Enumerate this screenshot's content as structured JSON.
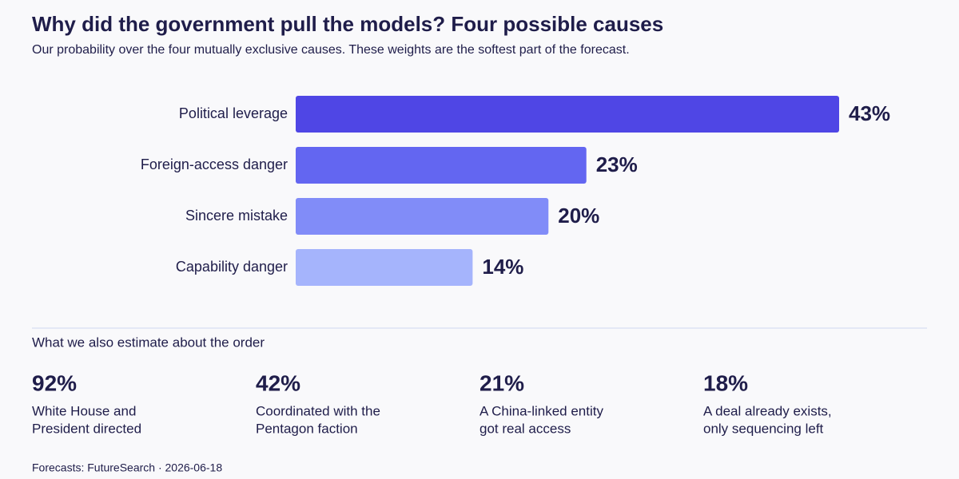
{
  "chart_data": {
    "type": "bar",
    "orientation": "horizontal",
    "title": "Why did the government pull the models? Four possible causes",
    "subtitle": "Our probability over the four mutually exclusive causes. These weights are the softest part of the forecast.",
    "categories": [
      "Political leverage",
      "Foreign-access danger",
      "Sincere mistake",
      "Capability danger"
    ],
    "values": [
      43,
      23,
      20,
      14
    ],
    "value_labels": [
      "43%",
      "23%",
      "20%",
      "14%"
    ],
    "colors": [
      "#4f46e5",
      "#6366f1",
      "#818cf8",
      "#a5b4fc"
    ]
  },
  "estimates": {
    "title": "What we also estimate about the order",
    "items": [
      {
        "value": "92%",
        "label_lines": [
          "White House and",
          "President directed"
        ]
      },
      {
        "value": "42%",
        "label_lines": [
          "Coordinated with the",
          "Pentagon faction"
        ]
      },
      {
        "value": "21%",
        "label_lines": [
          "A China-linked entity",
          "got real access"
        ]
      },
      {
        "value": "18%",
        "label_lines": [
          "A deal already exists,",
          "only sequencing left"
        ]
      }
    ]
  },
  "footer": "Forecasts: FutureSearch · 2026-06-18"
}
